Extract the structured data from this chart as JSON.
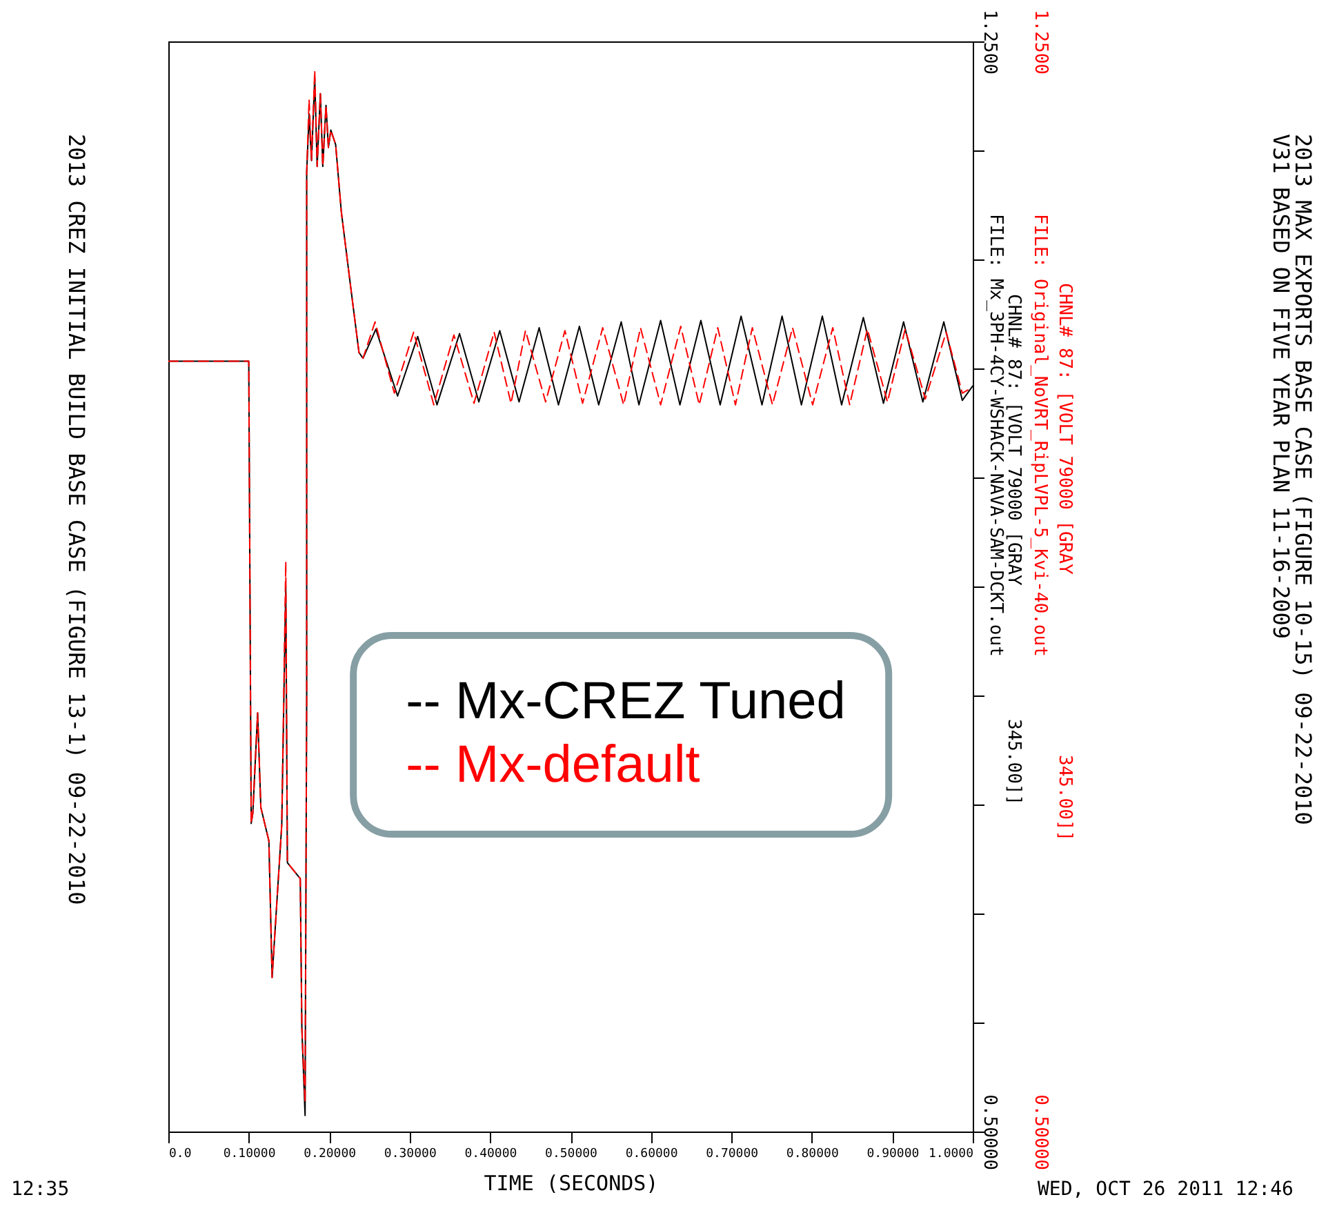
{
  "chart_data": {
    "type": "line",
    "xlabel": "TIME (SECONDS)",
    "annotations": [
      "2013 CREZ INITIAL BUILD BASE CASE (FIGURE 13-1) 09-22-2010",
      "12:35",
      "2013 MAX EXPORTS BASE CASE (FIGURE 10-15) 09-22-2010",
      "V31 BASED ON FIVE YEAR PLAN 11-16-2009",
      "WED, OCT 26 2011  12:46",
      "FILE: Mx_3PH-4CY-WSHACK-NAVA-SAM-DCKT.out",
      "CHNL# 87: [VOLT 79000 [GRAY",
      "345.00]]",
      "FILE: Original_NoVRT_RipLVPL-5_Kvi-40.out",
      "CHNL# 87: [VOLT 79000 [GRAY",
      "345.00]]"
    ],
    "xlim": [
      0,
      1.0
    ],
    "xticks": [
      {
        "value": 0,
        "label": "0.0"
      },
      {
        "value": 0.1,
        "label": "0.10000"
      },
      {
        "value": 0.2,
        "label": "0.20000"
      },
      {
        "value": 0.3,
        "label": "0.30000"
      },
      {
        "value": 0.4,
        "label": "0.40000"
      },
      {
        "value": 0.5,
        "label": "0.50000"
      },
      {
        "value": 0.6,
        "label": "0.60000"
      },
      {
        "value": 0.7,
        "label": "0.70000"
      },
      {
        "value": 0.8,
        "label": "0.80000"
      },
      {
        "value": 0.9,
        "label": "0.90000"
      },
      {
        "value": 1.0,
        "label": "1.0000"
      }
    ],
    "ylim": [
      0.5,
      1.25
    ],
    "yticks": [
      {
        "value": 1.25,
        "label": "1.2500"
      },
      {
        "value": 1.175,
        "label": null
      },
      {
        "value": 1.1,
        "label": null
      },
      {
        "value": 1.025,
        "label": null
      },
      {
        "value": 0.95,
        "label": null
      },
      {
        "value": 0.875,
        "label": null
      },
      {
        "value": 0.8,
        "label": null
      },
      {
        "value": 0.725,
        "label": null
      },
      {
        "value": 0.65,
        "label": null
      },
      {
        "value": 0.575,
        "label": null
      },
      {
        "value": 0.5,
        "label": "0.50000"
      }
    ],
    "y2lim": [
      0.5,
      1.25
    ],
    "y2ticks": [
      {
        "value": 1.25,
        "label": "1.2500"
      },
      {
        "value": 0.5,
        "label": "0.50000"
      }
    ],
    "grid": false,
    "legend": "center",
    "series": [
      {
        "name": "-- Mx-CREZ Tuned",
        "color": "#000000",
        "line_style": "solid",
        "x": [
          0,
          0.1,
          0.103,
          0.105,
          0.111,
          0.115,
          0.125,
          0.129,
          0.141,
          0.146,
          0.148,
          0.164,
          0.166,
          0.17,
          0.172,
          0.172,
          0.175,
          0.178,
          0.182,
          0.185,
          0.189,
          0.192,
          0.196,
          0.199,
          0.202,
          0.208,
          0.215,
          0.226,
          0.237,
          0.242,
          0.258,
          0.285,
          0.31,
          0.334,
          0.362,
          0.386,
          0.412,
          0.436,
          0.461,
          0.485,
          0.511,
          0.535,
          0.563,
          0.585,
          0.612,
          0.636,
          0.662,
          0.686,
          0.712,
          0.738,
          0.763,
          0.787,
          0.813,
          0.837,
          0.864,
          0.889,
          0.914,
          0.938,
          0.964,
          0.987,
          1.0
        ],
        "values": [
          1.03,
          1.03,
          0.712,
          0.719,
          0.788,
          0.723,
          0.7,
          0.606,
          0.711,
          0.875,
          0.685,
          0.674,
          0.571,
          0.511,
          0.8,
          1.16,
          1.2,
          1.168,
          1.225,
          1.164,
          1.214,
          1.164,
          1.206,
          1.177,
          1.189,
          1.179,
          1.133,
          1.084,
          1.036,
          1.032,
          1.052,
          1.006,
          1.047,
          1.0,
          1.049,
          1.002,
          1.051,
          1.002,
          1.053,
          1.0,
          1.054,
          1.0,
          1.057,
          1.0,
          1.058,
          1.0,
          1.058,
          1.0,
          1.061,
          1.0,
          1.061,
          1.0,
          1.061,
          1.0,
          1.06,
          1.001,
          1.057,
          1.002,
          1.057,
          1.003,
          1.013
        ]
      },
      {
        "name": "-- Mx-default",
        "color": "#ff0000",
        "line_style": "dashed",
        "axis": "y2",
        "x": [
          0,
          0.1,
          0.103,
          0.105,
          0.111,
          0.115,
          0.125,
          0.129,
          0.141,
          0.146,
          0.148,
          0.164,
          0.166,
          0.17,
          0.172,
          0.172,
          0.175,
          0.178,
          0.182,
          0.185,
          0.189,
          0.192,
          0.196,
          0.199,
          0.202,
          0.208,
          0.215,
          0.226,
          0.237,
          0.242,
          0.257,
          0.281,
          0.305,
          0.33,
          0.355,
          0.38,
          0.405,
          0.426,
          0.444,
          0.469,
          0.493,
          0.515,
          0.54,
          0.566,
          0.587,
          0.612,
          0.637,
          0.66,
          0.683,
          0.705,
          0.726,
          0.751,
          0.776,
          0.801,
          0.826,
          0.847,
          0.869,
          0.894,
          0.916,
          0.941,
          0.967,
          0.987,
          1.0
        ],
        "values": [
          1.03,
          1.03,
          0.712,
          0.719,
          0.788,
          0.723,
          0.7,
          0.606,
          0.711,
          0.892,
          0.685,
          0.674,
          0.571,
          0.52,
          0.8,
          1.16,
          1.21,
          1.168,
          1.23,
          1.164,
          1.214,
          1.164,
          1.206,
          1.177,
          1.189,
          1.179,
          1.133,
          1.084,
          1.036,
          1.032,
          1.057,
          1.008,
          1.05,
          1.0,
          1.048,
          1.001,
          1.05,
          1.001,
          1.051,
          1.002,
          1.051,
          1.001,
          1.053,
          1.0,
          1.053,
          1.0,
          1.054,
          1.0,
          1.053,
          1.0,
          1.053,
          1.0,
          1.053,
          1.0,
          1.053,
          1.0,
          1.052,
          1.002,
          1.052,
          1.004,
          1.05,
          1.008,
          1.012
        ]
      }
    ]
  }
}
